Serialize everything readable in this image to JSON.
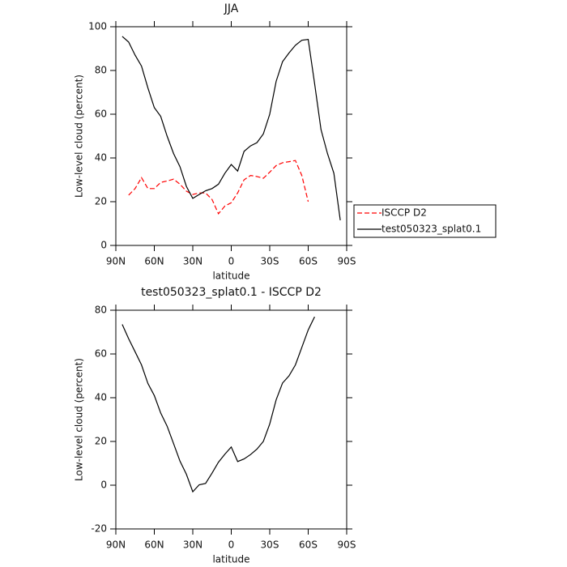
{
  "chart_data": [
    {
      "type": "line",
      "title": "JJA",
      "xlabel": "latitude",
      "ylabel": "Low-level cloud (percent)",
      "x": [
        85,
        80,
        75,
        70,
        65,
        60,
        55,
        50,
        45,
        40,
        35,
        30,
        25,
        20,
        15,
        10,
        5,
        0,
        -5,
        -10,
        -15,
        -20,
        -25,
        -30,
        -35,
        -40,
        -45,
        -50,
        -55,
        -60,
        -65,
        -70,
        -75,
        -80,
        -85
      ],
      "xlim": [
        90,
        -90
      ],
      "xticks": [
        {
          "value": 90,
          "label": "90N"
        },
        {
          "value": 60,
          "label": "60N"
        },
        {
          "value": 30,
          "label": "30N"
        },
        0,
        {
          "value": -30,
          "label": "30S"
        },
        {
          "value": -60,
          "label": "60S"
        },
        {
          "value": -90,
          "label": "90S"
        }
      ],
      "ylim": [
        0,
        100
      ],
      "yticks": [
        0,
        20,
        40,
        60,
        80,
        100
      ],
      "legend": "right",
      "series": [
        {
          "name": "ISCCP D2",
          "color": "#ff0000",
          "dashed": true,
          "values": [
            null,
            23,
            26,
            31,
            26,
            26,
            28.8,
            29.5,
            30.3,
            28,
            24.8,
            23.3,
            24,
            24,
            21,
            14.5,
            18,
            19.5,
            24,
            30,
            32,
            31.5,
            30.7,
            33.5,
            36.5,
            37.8,
            38.3,
            38.8,
            32,
            20,
            null,
            null,
            null,
            null,
            null
          ]
        },
        {
          "name": "test050323_splat0.1",
          "color": "#000000",
          "dashed": false,
          "values": [
            95.6,
            93,
            87,
            82,
            72,
            63,
            59,
            50,
            42,
            36,
            27,
            21.5,
            23.3,
            25,
            26,
            28,
            33,
            37,
            34,
            43,
            45.5,
            47,
            51,
            60,
            75,
            84,
            88,
            91.5,
            93.8,
            94.2,
            74,
            53,
            42,
            33,
            11.5
          ]
        }
      ]
    },
    {
      "type": "line",
      "title": "test050323_splat0.1 - ISCCP D2",
      "xlabel": "latitude",
      "ylabel": "Low-level cloud (percent)",
      "x": [
        85,
        80,
        75,
        70,
        65,
        60,
        55,
        50,
        45,
        40,
        35,
        30,
        25,
        20,
        15,
        10,
        5,
        0,
        -5,
        -10,
        -15,
        -20,
        -25,
        -30,
        -35,
        -40,
        -45,
        -50,
        -55,
        -60,
        -65
      ],
      "xlim": [
        90,
        -90
      ],
      "xticks": [
        {
          "value": 90,
          "label": "90N"
        },
        {
          "value": 60,
          "label": "60N"
        },
        {
          "value": 30,
          "label": "30N"
        },
        0,
        {
          "value": -30,
          "label": "30S"
        },
        {
          "value": -60,
          "label": "60S"
        },
        {
          "value": -90,
          "label": "90S"
        }
      ],
      "ylim": [
        -20,
        80
      ],
      "yticks": [
        -20,
        0,
        20,
        40,
        60,
        80
      ],
      "series": [
        {
          "color": "#000000",
          "dashed": false,
          "values": [
            73.5,
            67,
            61,
            55,
            46.5,
            41,
            33,
            27,
            19,
            11,
            5,
            -3,
            0.2,
            0.8,
            5.5,
            10.5,
            14.2,
            17.5,
            10.8,
            12,
            14,
            16.5,
            20,
            28,
            39,
            46.7,
            50,
            55,
            63,
            71,
            77
          ]
        }
      ]
    }
  ]
}
